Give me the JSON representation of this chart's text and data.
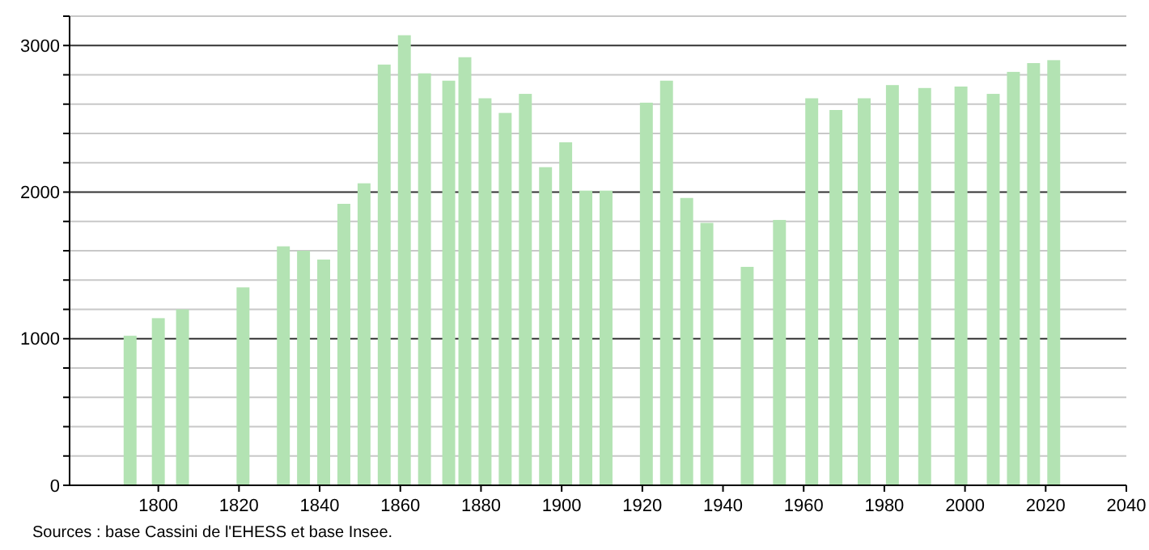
{
  "chart_data": {
    "type": "bar",
    "x": [
      1793,
      1800,
      1806,
      1821,
      1831,
      1836,
      1841,
      1846,
      1851,
      1856,
      1861,
      1866,
      1872,
      1876,
      1881,
      1886,
      1891,
      1896,
      1901,
      1906,
      1911,
      1921,
      1926,
      1931,
      1936,
      1946,
      1954,
      1962,
      1968,
      1975,
      1982,
      1990,
      1999,
      2007,
      2012,
      2017,
      2022
    ],
    "values": [
      1020,
      1140,
      1200,
      1350,
      1630,
      1600,
      1540,
      1920,
      2060,
      2870,
      3070,
      2810,
      2760,
      2920,
      2640,
      2540,
      2670,
      2170,
      2340,
      2010,
      2010,
      2610,
      2760,
      1960,
      1790,
      1490,
      1810,
      2640,
      2560,
      2640,
      2730,
      2710,
      2720,
      2670,
      2820,
      2880,
      2900
    ],
    "color": "#b3e3b3",
    "xlim": [
      1778,
      2040
    ],
    "xticks": [
      1800,
      1820,
      1840,
      1860,
      1880,
      1900,
      1920,
      1940,
      1960,
      1980,
      2000,
      2020,
      2040
    ],
    "ylim": [
      0,
      3200
    ],
    "yticks": [
      0,
      {
        "value": 200,
        "label": null
      },
      {
        "value": 400,
        "label": null
      },
      {
        "value": 600,
        "label": null
      },
      {
        "value": 800,
        "label": null
      },
      1000,
      {
        "value": 1200,
        "label": null
      },
      {
        "value": 1400,
        "label": null
      },
      {
        "value": 1600,
        "label": null
      },
      {
        "value": 1800,
        "label": null
      },
      2000,
      {
        "value": 2200,
        "label": null
      },
      {
        "value": 2400,
        "label": null
      },
      {
        "value": 2600,
        "label": null
      },
      {
        "value": 2800,
        "label": null
      },
      3000,
      {
        "value": 3200,
        "label": null
      }
    ],
    "grid": true,
    "annotations": [
      "Sources : base Cassini de l'EHESS et base Insee."
    ]
  }
}
